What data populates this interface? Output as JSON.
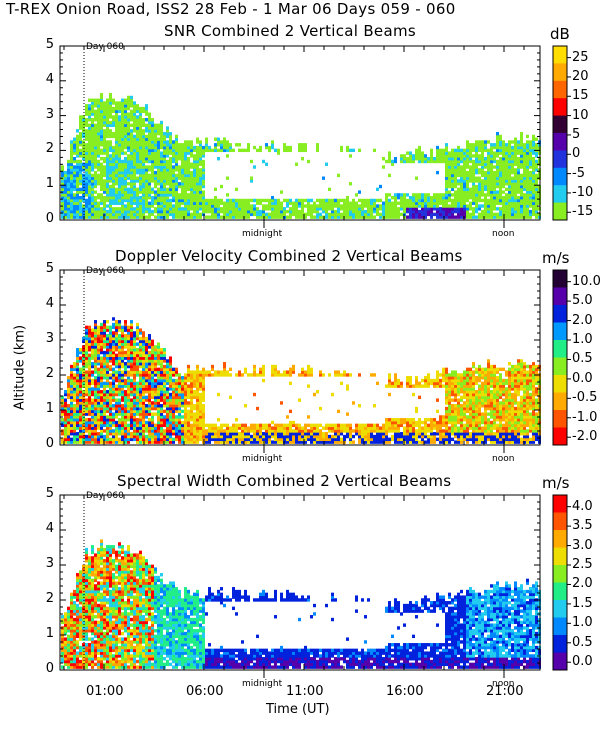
{
  "figure_title": "T-REX Onion Road, ISS2  28 Feb -  1 Mar 06 Days 059 - 060",
  "y_axis_label": "Altitude (km)",
  "x_axis_label": "Time (UT)",
  "day_marker_label": "Day 060",
  "midnight_label": "midnight",
  "noon_label": "noon",
  "colors": {
    "palette": [
      "#5500aa",
      "#2211cc",
      "#0044ff",
      "#00aaff",
      "#22dddd",
      "#22ee88",
      "#88ee22",
      "#eedd00",
      "#ffaa00",
      "#ff6600",
      "#ff2200",
      "#220044"
    ]
  },
  "chart_data": [
    {
      "type": "heatmap",
      "title": "SNR Combined 2 Vertical Beams",
      "unit": "dB",
      "ylabel": "",
      "ylim": [
        0,
        5
      ],
      "yticks": [
        "0",
        "1",
        "2",
        "3",
        "4",
        "5"
      ],
      "colorbar_ticks": [
        "25",
        "20",
        "15",
        "10",
        "5",
        "0",
        "-5",
        "-10",
        "-15"
      ],
      "colorbar_colors": [
        "#ffdd00",
        "#ffaa00",
        "#ff6600",
        "#ff0000",
        "#330033",
        "#5500aa",
        "#2233dd",
        "#0088ff",
        "#22ccee",
        "#88ee22"
      ]
    },
    {
      "type": "heatmap",
      "title": "Doppler Velocity Combined 2 Vertical Beams",
      "unit": "m/s",
      "ylabel": "Altitude (km)",
      "ylim": [
        0,
        5
      ],
      "yticks": [
        "0",
        "1",
        "2",
        "3",
        "4",
        "5"
      ],
      "colorbar_ticks": [
        "10.0",
        "5.0",
        "2.0",
        "1.0",
        "0.5",
        "0.0",
        "-0.5",
        "-1.0",
        "-2.0"
      ],
      "colorbar_colors": [
        "#220033",
        "#5500aa",
        "#0022dd",
        "#0099ff",
        "#22ee88",
        "#88ee22",
        "#eedd00",
        "#ffaa00",
        "#ff5500",
        "#ff0000"
      ]
    },
    {
      "type": "heatmap",
      "title": "Spectral Width Combined 2 Vertical Beams",
      "unit": "m/s",
      "ylabel": "",
      "ylim": [
        0,
        5
      ],
      "yticks": [
        "0",
        "1",
        "2",
        "3",
        "4",
        "5"
      ],
      "colorbar_ticks": [
        "4.0",
        "3.5",
        "3.0",
        "2.5",
        "2.0",
        "1.5",
        "1.0",
        "0.5",
        "0.0"
      ],
      "colorbar_colors": [
        "#ff0000",
        "#ff5500",
        "#ffaa00",
        "#eedd00",
        "#88ee22",
        "#22ee88",
        "#22ccee",
        "#0088ff",
        "#0022dd",
        "#5500aa"
      ]
    }
  ],
  "x_ticks": [
    "01:00",
    "06:00",
    "11:00",
    "16:00",
    "21:00"
  ],
  "x_tick_hours": [
    1,
    6,
    11,
    16,
    21
  ],
  "x_range_hours": [
    22.8,
    46.8
  ],
  "day_marker_hour": 24.0,
  "midnight_hour": 33.0,
  "noon_hour": 45.0
}
